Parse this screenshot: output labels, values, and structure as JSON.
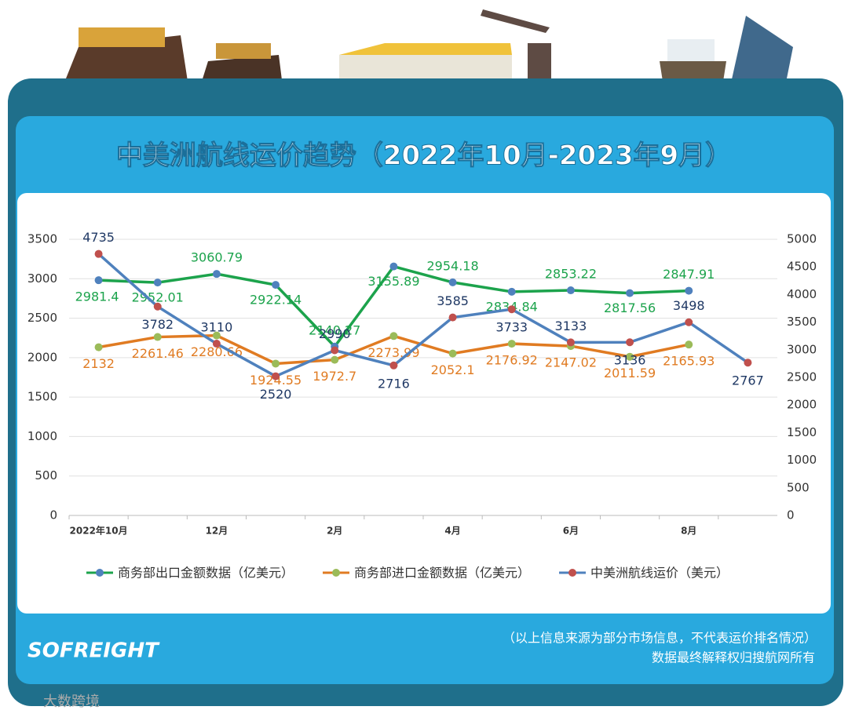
{
  "chart_data": {
    "type": "line",
    "title": "中美洲航线运价趋势（2022年10月-2023年9月）",
    "categories": [
      "2022年10月",
      null,
      "12月",
      null,
      "2月",
      null,
      "4月",
      null,
      "6月",
      null,
      "8月",
      null
    ],
    "series": [
      {
        "name": "商务部出口金额数据（亿美元）",
        "color": "#1ca34c",
        "marker_color": "#4f81bd",
        "label_color": "#1ca34c",
        "values": [
          2981.4,
          2952.01,
          3060.79,
          2922.14,
          2140.27,
          3155.89,
          2954.18,
          2834.84,
          2853.22,
          2817.56,
          2847.91,
          null
        ]
      },
      {
        "name": "商务部进口金额数据（亿美元）",
        "color": "#e07b22",
        "marker_color": "#9bbb59",
        "label_color": "#e07b22",
        "values": [
          2132,
          2261.46,
          2280.66,
          1924.55,
          1972.7,
          2273.99,
          2052.1,
          2176.92,
          2147.02,
          2011.59,
          2165.93,
          null
        ]
      },
      {
        "name": "中美洲航线运价（美元）",
        "color": "#4f81bd",
        "marker_color": "#c0504d",
        "label_color": "#1f3864",
        "axis": "y2",
        "values": [
          4735,
          3782,
          3110,
          2520,
          2990,
          2716,
          3585,
          3733,
          3133,
          3136,
          3498,
          2767
        ]
      }
    ],
    "ylim": [
      0,
      3500
    ],
    "yticks": [
      0,
      500,
      1000,
      1500,
      2000,
      2500,
      3000,
      3500
    ],
    "y2lim": [
      0,
      5000
    ],
    "y2ticks": [
      0,
      500,
      1000,
      1500,
      2000,
      2500,
      3000,
      3500,
      4000,
      4500,
      5000
    ],
    "grid": true,
    "legend": "bottom"
  },
  "footer": {
    "logo": "SOFREIGHT",
    "notes": [
      "（以上信息来源为部分市场信息，不代表运价排名情况）",
      "数据最终解释权归搜航网所有"
    ]
  },
  "watermark": "大数跨境"
}
